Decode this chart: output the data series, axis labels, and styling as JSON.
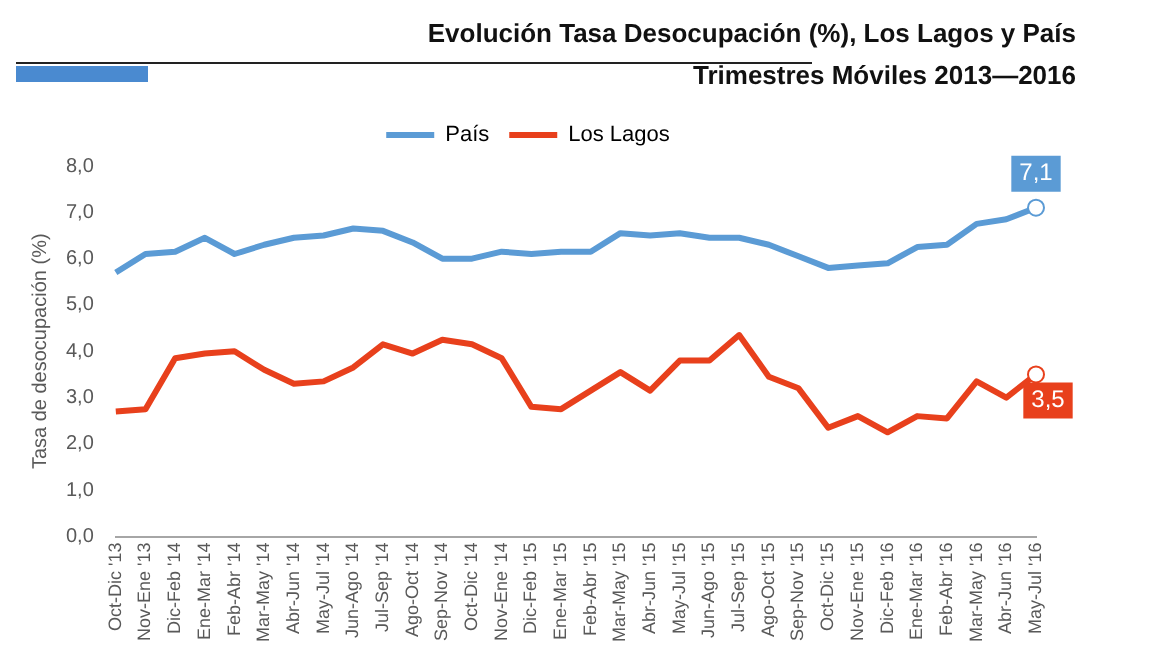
{
  "chart_data": {
    "type": "line",
    "title": "Evolución Tasa Desocupación (%), Los Lagos y País Trimestres Móviles 2013—2016",
    "ylabel": "Tasa de desocupación (%)",
    "categories": [
      "Oct-Dic '13",
      "Nov-Ene '13",
      "Dic-Feb '14",
      "Ene-Mar '14",
      "Feb-Abr '14",
      "Mar-May '14",
      "Abr-Jun '14",
      "May-Jul '14",
      "Jun-Ago '14",
      "Jul-Sep '14",
      "Ago-Oct '14",
      "Sep-Nov '14",
      "Oct-Dic '14",
      "Nov-Ene '14",
      "Dic-Feb '15",
      "Ene-Mar '15",
      "Feb-Abr '15",
      "Mar-May '15",
      "Abr-Jun '15",
      "May-Jul '15",
      "Jun-Ago '15",
      "Jul-Sep '15",
      "Ago-Oct '15",
      "Sep-Nov '15",
      "Oct-Dic '15",
      "Nov-Ene '15",
      "Dic-Feb '16",
      "Ene-Mar '16",
      "Feb-Abr '16",
      "Mar-May '16",
      "Abr-Jun '16",
      "May-Jul '16"
    ],
    "series": [
      {
        "name": "País",
        "color": "#5b9bd5",
        "values": [
          5.7,
          6.1,
          6.15,
          6.45,
          6.1,
          6.3,
          6.45,
          6.5,
          6.65,
          6.6,
          6.35,
          6.0,
          6.0,
          6.15,
          6.1,
          6.15,
          6.15,
          6.55,
          6.5,
          6.55,
          6.45,
          6.45,
          6.3,
          6.05,
          5.8,
          5.85,
          5.9,
          6.25,
          6.3,
          6.75,
          6.85,
          7.1
        ],
        "value_labels": [
          null,
          null,
          null,
          null,
          null,
          null,
          null,
          null,
          null,
          null,
          null,
          null,
          null,
          null,
          null,
          null,
          null,
          null,
          null,
          null,
          null,
          null,
          null,
          null,
          null,
          null,
          null,
          null,
          null,
          null,
          null,
          "7,1"
        ]
      },
      {
        "name": "Los Lagos",
        "color": "#e8401c",
        "values": [
          2.7,
          2.75,
          3.85,
          3.95,
          4.0,
          3.6,
          3.3,
          3.35,
          3.65,
          4.15,
          3.95,
          4.25,
          4.15,
          3.85,
          2.8,
          2.75,
          3.15,
          3.55,
          3.15,
          3.8,
          3.8,
          4.35,
          3.45,
          3.2,
          2.35,
          2.6,
          2.25,
          2.6,
          2.55,
          3.35,
          3.0,
          3.5
        ],
        "value_labels": [
          null,
          null,
          null,
          null,
          null,
          null,
          null,
          null,
          null,
          null,
          null,
          null,
          null,
          null,
          null,
          null,
          null,
          null,
          null,
          null,
          null,
          null,
          null,
          null,
          null,
          null,
          null,
          null,
          null,
          null,
          null,
          "3,5"
        ]
      }
    ],
    "ylim": [
      0,
      8
    ],
    "yticks": [
      {
        "value": 0,
        "label": "0,0"
      },
      {
        "value": 1,
        "label": "1,0"
      },
      {
        "value": 2,
        "label": "2,0"
      },
      {
        "value": 3,
        "label": "3,0"
      },
      {
        "value": 4,
        "label": "4,0"
      },
      {
        "value": 5,
        "label": "5,0"
      },
      {
        "value": 6,
        "label": "6,0"
      },
      {
        "value": 7,
        "label": "7,0"
      },
      {
        "value": 8,
        "label": "8,0"
      }
    ],
    "grid": false,
    "legend": "top",
    "marker": "none",
    "line_style": "solid"
  }
}
